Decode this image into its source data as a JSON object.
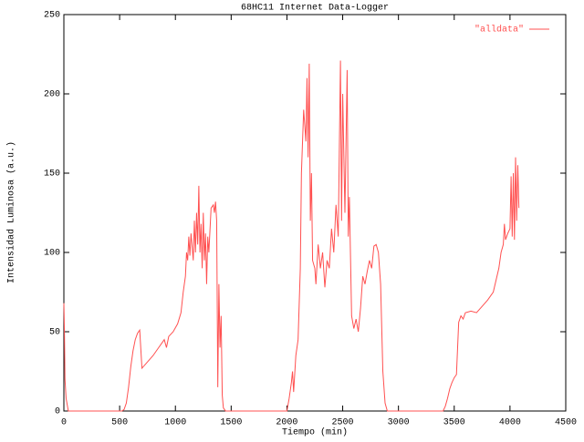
{
  "chart_data": {
    "type": "line",
    "title": "68HC11 Internet Data-Logger",
    "x_label": "Tiempo (min)",
    "y_label": "Intensidad Luminosa (a.u.)",
    "legend_position": "top-right",
    "xlim": [
      0,
      4500
    ],
    "xticks": [
      0,
      500,
      1000,
      1500,
      2000,
      2500,
      3000,
      3500,
      4000,
      4500
    ],
    "ylim": [
      0,
      250
    ],
    "yticks": [
      0,
      50,
      100,
      150,
      200,
      250
    ],
    "grid": false,
    "series": [
      {
        "name": "\"alldata\"",
        "color": "#ff5050",
        "x": [
          0,
          5,
          10,
          20,
          40,
          500,
          520,
          540,
          560,
          580,
          600,
          620,
          640,
          660,
          680,
          700,
          750,
          800,
          850,
          880,
          900,
          920,
          940,
          980,
          1020,
          1050,
          1070,
          1090,
          1100,
          1110,
          1120,
          1130,
          1140,
          1160,
          1170,
          1180,
          1190,
          1200,
          1210,
          1220,
          1230,
          1240,
          1250,
          1260,
          1270,
          1280,
          1290,
          1300,
          1320,
          1340,
          1350,
          1360,
          1370,
          1380,
          1390,
          1400,
          1410,
          1420,
          1430,
          1450,
          2000,
          2020,
          2040,
          2050,
          2060,
          2080,
          2100,
          2120,
          2130,
          2150,
          2170,
          2180,
          2190,
          2200,
          2210,
          2220,
          2230,
          2250,
          2260,
          2280,
          2300,
          2320,
          2340,
          2360,
          2380,
          2400,
          2420,
          2440,
          2460,
          2480,
          2490,
          2500,
          2520,
          2540,
          2550,
          2560,
          2580,
          2600,
          2620,
          2640,
          2660,
          2680,
          2700,
          2720,
          2740,
          2760,
          2780,
          2800,
          2820,
          2840,
          2860,
          2880,
          2900,
          3400,
          3420,
          3440,
          3460,
          3480,
          3500,
          3520,
          3540,
          3560,
          3580,
          3600,
          3650,
          3700,
          3750,
          3800,
          3850,
          3900,
          3920,
          3940,
          3950,
          3960,
          3980,
          4000,
          4010,
          4020,
          4030,
          4040,
          4050,
          4060,
          4070,
          4080
        ],
        "values": [
          68,
          50,
          20,
          8,
          0,
          0,
          0,
          1,
          5,
          15,
          28,
          38,
          45,
          49,
          51,
          27,
          31,
          35,
          40,
          43,
          45,
          40,
          47,
          50,
          55,
          62,
          75,
          85,
          100,
          95,
          110,
          98,
          112,
          95,
          120,
          100,
          125,
          105,
          142,
          100,
          118,
          90,
          125,
          95,
          112,
          80,
          110,
          100,
          128,
          130,
          125,
          132,
          120,
          15,
          80,
          40,
          60,
          10,
          2,
          0,
          0,
          8,
          18,
          25,
          12,
          35,
          45,
          90,
          150,
          190,
          170,
          210,
          160,
          219,
          120,
          150,
          95,
          90,
          80,
          105,
          90,
          100,
          78,
          95,
          90,
          115,
          100,
          130,
          110,
          221,
          120,
          200,
          125,
          215,
          110,
          135,
          60,
          52,
          58,
          50,
          65,
          85,
          80,
          88,
          95,
          90,
          104,
          105,
          100,
          80,
          25,
          5,
          0,
          0,
          3,
          8,
          14,
          18,
          21,
          23,
          56,
          60,
          58,
          62,
          63,
          62,
          66,
          70,
          75,
          90,
          100,
          105,
          118,
          108,
          112,
          115,
          148,
          110,
          150,
          108,
          160,
          120,
          155,
          128
        ]
      }
    ]
  }
}
